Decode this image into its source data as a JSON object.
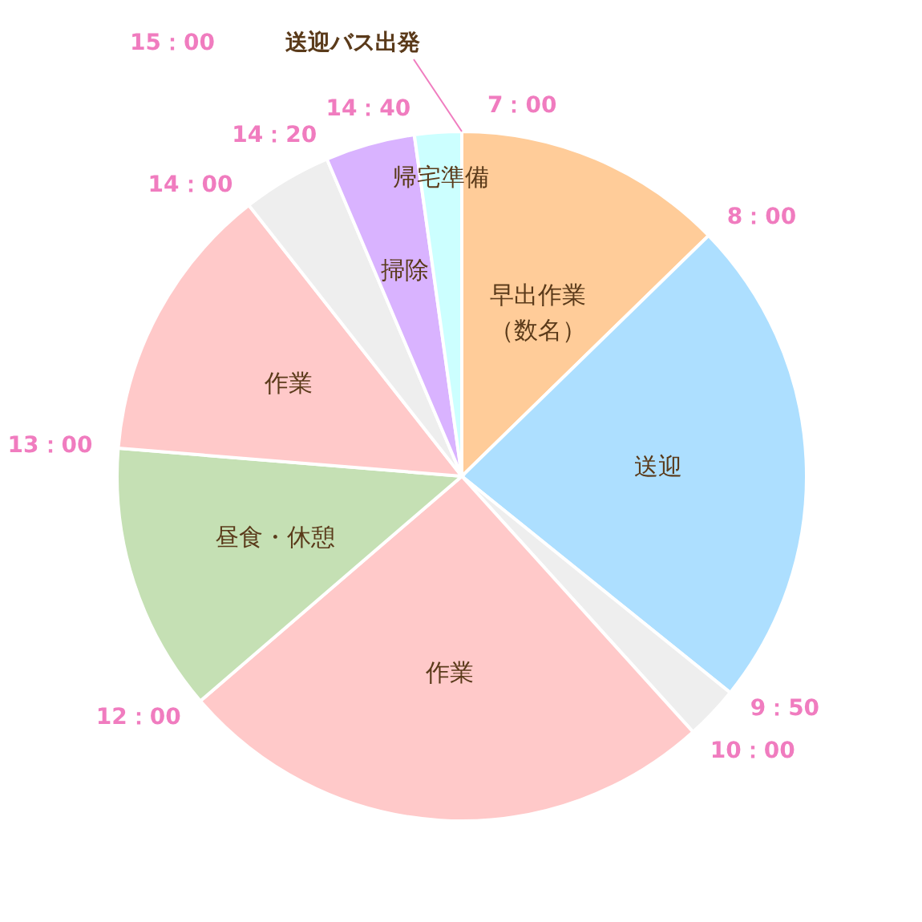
{
  "chart_data": {
    "type": "pie",
    "categories": [
      "早出作業（数名）",
      "送迎",
      null,
      "作業",
      "昼食・休憩",
      "作業",
      null,
      "掃除",
      "帰宅準備"
    ],
    "values": [
      12.7,
      23.1,
      2.5,
      25.4,
      12.6,
      13.1,
      4.2,
      4.2,
      2.2
    ],
    "colors": [
      "#ffcc99",
      "#addfff",
      "#eeeeee",
      "#ffc9c9",
      "#c5e0b4",
      "#ffc9c9",
      "#eeeeee",
      "#d9b3ff",
      "#ccffff"
    ],
    "annotations": [
      "7：00",
      "8：00",
      "9：50",
      "10：00",
      "12：00",
      "13：00",
      "14：00",
      "14：20",
      "14：40",
      "15：00",
      "送迎バス出発"
    ]
  }
}
